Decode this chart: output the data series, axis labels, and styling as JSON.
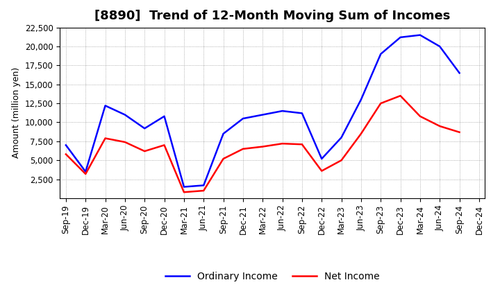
{
  "title": "[8890]  Trend of 12-Month Moving Sum of Incomes",
  "ylabel": "Amount (million yen)",
  "background_color": "#ffffff",
  "plot_bg_color": "#ffffff",
  "grid_color": "#999999",
  "x_labels": [
    "Sep-19",
    "Dec-19",
    "Mar-20",
    "Jun-20",
    "Sep-20",
    "Dec-20",
    "Mar-21",
    "Jun-21",
    "Sep-21",
    "Dec-21",
    "Mar-22",
    "Jun-22",
    "Sep-22",
    "Dec-22",
    "Mar-23",
    "Jun-23",
    "Sep-23",
    "Dec-23",
    "Mar-24",
    "Jun-24",
    "Sep-24",
    "Dec-24"
  ],
  "ordinary_income": [
    7000,
    3500,
    12200,
    11000,
    9200,
    10800,
    1500,
    1700,
    8500,
    10500,
    11000,
    11500,
    11200,
    5200,
    8000,
    13000,
    19000,
    21200,
    21500,
    20000,
    16500,
    null
  ],
  "net_income": [
    5800,
    3200,
    7900,
    7400,
    6200,
    7000,
    800,
    1000,
    5200,
    6500,
    6800,
    7200,
    7100,
    3600,
    5000,
    8500,
    12500,
    13500,
    10800,
    9500,
    8700,
    null
  ],
  "ordinary_color": "#0000ff",
  "net_color": "#ff0000",
  "line_width": 1.8,
  "ylim": [
    0,
    22500
  ],
  "yticks": [
    2500,
    5000,
    7500,
    10000,
    12500,
    15000,
    17500,
    20000,
    22500
  ],
  "legend_labels": [
    "Ordinary Income",
    "Net Income"
  ],
  "title_fontsize": 13,
  "axis_fontsize": 9,
  "tick_fontsize": 8.5
}
